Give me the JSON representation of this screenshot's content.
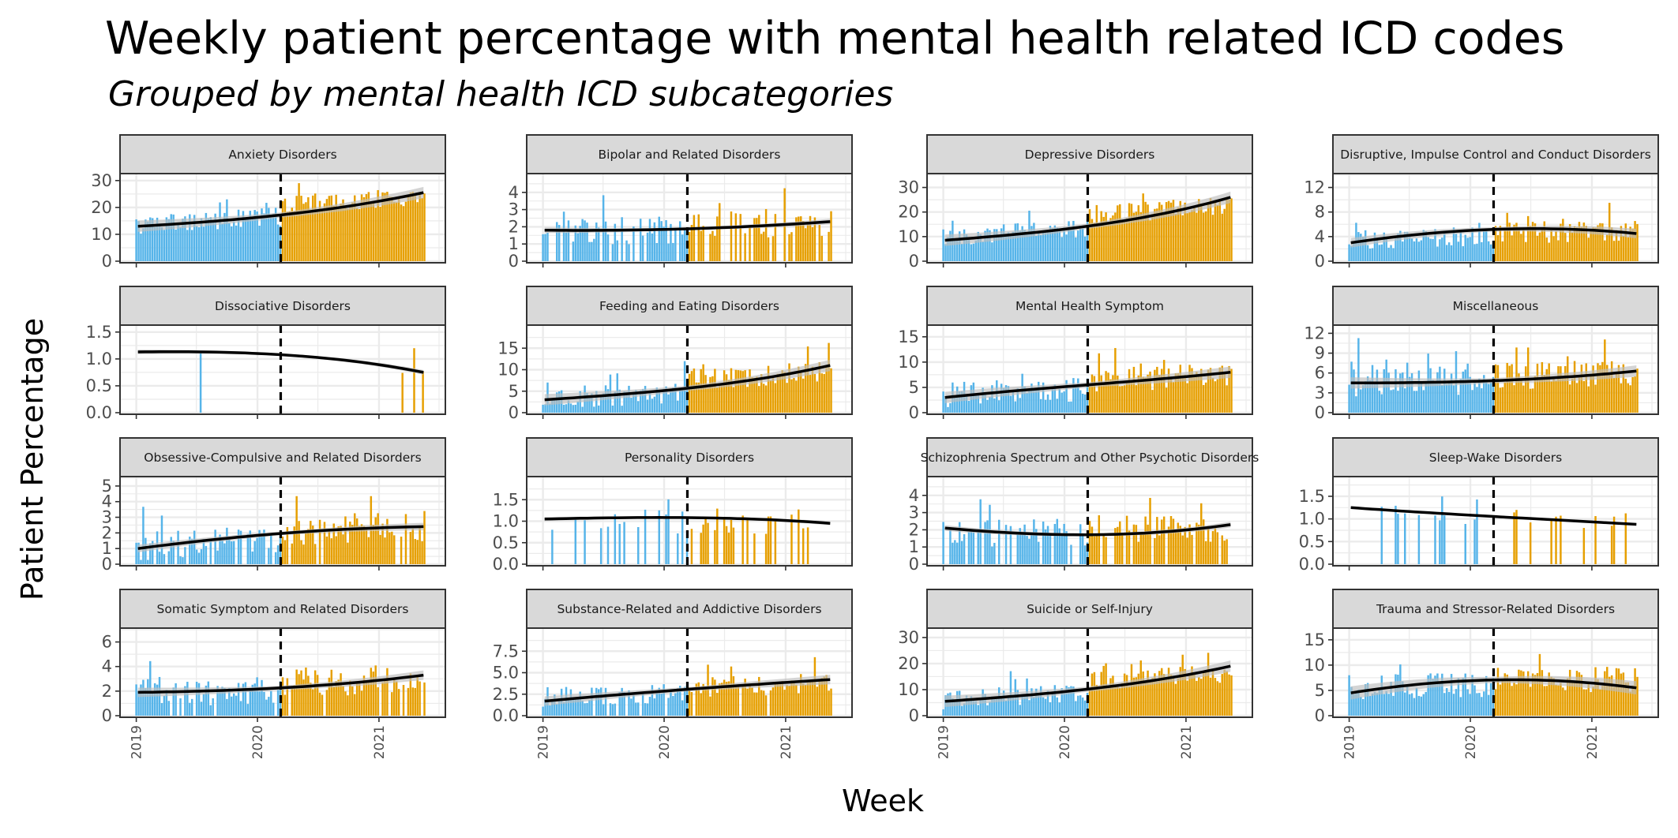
{
  "title": "Weekly patient percentage with mental health related ICD codes",
  "subtitle": "Grouped by mental health ICD subcategories",
  "colors": {
    "pre": "#56B4E9",
    "post": "#E69F00",
    "trend": "#000000",
    "ci_band": "#bdbdbd",
    "strip_fill": "#d9d9d9",
    "grid": "#ebebeb"
  },
  "chart_data": {
    "type": "bar",
    "facet_layout": "4x4",
    "xlabel": "Week",
    "ylabel": "Patient Percentage",
    "x_range": [
      "2019-01-01",
      "2021-06-01"
    ],
    "x_ticks": [
      "2019",
      "2020",
      "2021"
    ],
    "cutoff": "2020-03-11",
    "grid": true,
    "legend": "none",
    "panels": [
      {
        "name": "Anxiety Disorders",
        "ylim": [
          0,
          32
        ],
        "yticks": [
          "0",
          "10",
          "20",
          "30"
        ],
        "mean_pre": 14,
        "mean_post": 23,
        "sd": 3.5,
        "trend": [
          13,
          15,
          18,
          25.5
        ],
        "ci": 0.6
      },
      {
        "name": "Bipolar and Related Disorders",
        "ylim": [
          0,
          5
        ],
        "yticks": [
          "0",
          "1",
          "2",
          "3",
          "4"
        ],
        "mean_pre": 1.6,
        "mean_post": 2.1,
        "sd": 0.8,
        "trend": [
          1.8,
          1.75,
          1.9,
          2.3
        ],
        "ci": 0.3,
        "gaps": 0.25
      },
      {
        "name": "Depressive Disorders",
        "ylim": [
          0,
          35
        ],
        "yticks": [
          "0",
          "10",
          "20",
          "30"
        ],
        "mean_pre": 10,
        "mean_post": 20,
        "sd": 4,
        "trend": [
          8.5,
          11.5,
          15,
          26
        ],
        "ci": 0.6
      },
      {
        "name": "Disruptive, Impulse Control and Conduct Disorders",
        "ylim": [
          0,
          14
        ],
        "yticks": [
          "0",
          "4",
          "8",
          "12"
        ],
        "mean_pre": 4.5,
        "mean_post": 5.5,
        "sd": 1.8,
        "trend": [
          3,
          5.3,
          6,
          4.5
        ],
        "ci": 0.5
      },
      {
        "name": "Dissociative Disorders",
        "ylim": [
          0,
          1.6
        ],
        "yticks": [
          "0.0",
          "0.5",
          "1.0",
          "1.5"
        ],
        "mean_pre": 1.1,
        "mean_post": 0.8,
        "sd": 0,
        "trend": [
          1.13,
          1.15,
          1.1,
          0.75
        ],
        "ci": 0.25,
        "sparse": [
          0.22,
          0.95,
          0.91,
          0.98
        ]
      },
      {
        "name": "Feeding and Eating Disorders",
        "ylim": [
          0,
          20
        ],
        "yticks": [
          "0",
          "5",
          "10",
          "15"
        ],
        "mean_pre": 3,
        "mean_post": 8,
        "sd": 2.5,
        "trend": [
          3,
          4.5,
          6,
          11
        ],
        "ci": 0.6
      },
      {
        "name": "Mental Health Symptom",
        "ylim": [
          0,
          17
        ],
        "yticks": [
          "0",
          "5",
          "10",
          "15"
        ],
        "mean_pre": 4,
        "mean_post": 7,
        "sd": 2.5,
        "trend": [
          3,
          5,
          6,
          8
        ],
        "ci": 0.6
      },
      {
        "name": "Miscellaneous",
        "ylim": [
          0,
          13
        ],
        "yticks": [
          "0",
          "3",
          "6",
          "9",
          "12"
        ],
        "mean_pre": 4.5,
        "mean_post": 6,
        "sd": 2.2,
        "trend": [
          4.5,
          4.5,
          4.8,
          6.3
        ],
        "ci": 0.6
      },
      {
        "name": "Obsessive-Compulsive and Related Disorders",
        "ylim": [
          0,
          5.5
        ],
        "yticks": [
          "0",
          "1",
          "2",
          "3",
          "4",
          "5"
        ],
        "mean_pre": 1.2,
        "mean_post": 2.5,
        "sd": 1,
        "trend": [
          1,
          1.8,
          2.3,
          2.4
        ],
        "ci": 0.4,
        "gaps": 0.25
      },
      {
        "name": "Personality Disorders",
        "ylim": [
          0,
          2
        ],
        "yticks": [
          "0.0",
          "0.5",
          "1.0",
          "1.5"
        ],
        "mean_pre": 1.0,
        "mean_post": 1.0,
        "sd": 0.3,
        "trend": [
          1.05,
          1.1,
          1.12,
          0.95
        ],
        "ci": 0.2,
        "gaps": 0.7
      },
      {
        "name": "Schizophrenia Spectrum and Other Psychotic Disorders",
        "ylim": [
          0,
          5
        ],
        "yticks": [
          "0",
          "1",
          "2",
          "3",
          "4"
        ],
        "mean_pre": 1.5,
        "mean_post": 1.9,
        "sd": 0.8,
        "trend": [
          2.1,
          1.6,
          1.5,
          2.3
        ],
        "ci": 0.3,
        "gaps": 0.25
      },
      {
        "name": "Sleep-Wake Disorders",
        "ylim": [
          0,
          1.9
        ],
        "yticks": [
          "0.0",
          "0.5",
          "1.0",
          "1.5"
        ],
        "mean_pre": 1.1,
        "mean_post": 1.0,
        "sd": 0.25,
        "trend": [
          1.25,
          1.1,
          1.0,
          0.88
        ],
        "ci": 0.12,
        "gaps": 0.88
      },
      {
        "name": "Somatic Symptom and Related Disorders",
        "ylim": [
          0,
          7
        ],
        "yticks": [
          "0",
          "2",
          "4",
          "6"
        ],
        "mean_pre": 1.8,
        "mean_post": 2.8,
        "sd": 1.2,
        "trend": [
          1.9,
          2,
          2.3,
          3.3
        ],
        "ci": 0.5,
        "gaps": 0.15
      },
      {
        "name": "Substance-Related and Addictive Disorders",
        "ylim": [
          0,
          10
        ],
        "yticks": [
          "0.0",
          "2.5",
          "5.0",
          "7.5"
        ],
        "mean_pre": 2.5,
        "mean_post": 3.5,
        "sd": 1.2,
        "trend": [
          1.7,
          2.7,
          3.5,
          4.2
        ],
        "ci": 0.5,
        "gaps": 0.05
      },
      {
        "name": "Suicide or Self-Injury",
        "ylim": [
          0,
          33
        ],
        "yticks": [
          "0",
          "10",
          "20",
          "30"
        ],
        "mean_pre": 6,
        "mean_post": 14,
        "sd": 3.5,
        "trend": [
          5.5,
          8,
          11,
          19
        ],
        "ci": 0.6
      },
      {
        "name": "Trauma and Stressor-Related Disorders",
        "ylim": [
          0,
          17
        ],
        "yticks": [
          "0",
          "5",
          "10",
          "15"
        ],
        "mean_pre": 7,
        "mean_post": 9,
        "sd": 2.5,
        "trend": [
          4.5,
          7.5,
          8,
          5.5
        ],
        "ci": 0.7
      }
    ]
  }
}
